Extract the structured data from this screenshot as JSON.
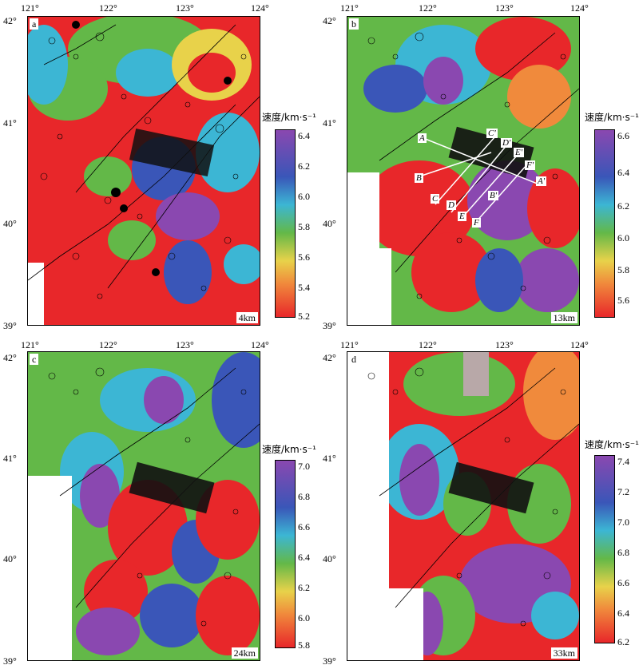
{
  "panels": [
    {
      "letter": "a",
      "depth": "4km",
      "colorbar": {
        "title": "速度/km·s⁻¹",
        "ticks": [
          "6.4",
          "6.2",
          "6.0",
          "5.8",
          "5.6",
          "5.4",
          "5.2"
        ]
      }
    },
    {
      "letter": "b",
      "depth": "13km",
      "colorbar": {
        "title": "速度/km·s⁻¹",
        "ticks": [
          "6.6",
          "6.4",
          "6.2",
          "6.0",
          "5.8",
          "5.6"
        ]
      },
      "profiles": [
        "A",
        "A'",
        "B",
        "B'",
        "C",
        "C'",
        "D",
        "D'",
        "E",
        "E'",
        "F",
        "F'"
      ]
    },
    {
      "letter": "c",
      "depth": "24km",
      "colorbar": {
        "title": "速度/km·s⁻¹",
        "ticks": [
          "7.0",
          "6.8",
          "6.6",
          "6.4",
          "6.2",
          "6.0",
          "5.8"
        ]
      }
    },
    {
      "letter": "d",
      "depth": "33km",
      "colorbar": {
        "title": "速度/km·s⁻¹",
        "ticks": [
          "7.4",
          "7.2",
          "7.0",
          "6.8",
          "6.6",
          "6.4",
          "6.2"
        ]
      }
    }
  ],
  "axes": {
    "lon_labels": [
      "121°",
      "122°",
      "123°",
      "124°"
    ],
    "lat_labels": [
      "42°",
      "41°",
      "40°",
      "39°"
    ]
  },
  "colors": {
    "red": "#e8272a",
    "orange": "#f08a3c",
    "yellow": "#e8d24a",
    "green": "#63b848",
    "cyan": "#3cb6d4",
    "blue": "#3a56b8",
    "purple": "#8a48b0"
  }
}
